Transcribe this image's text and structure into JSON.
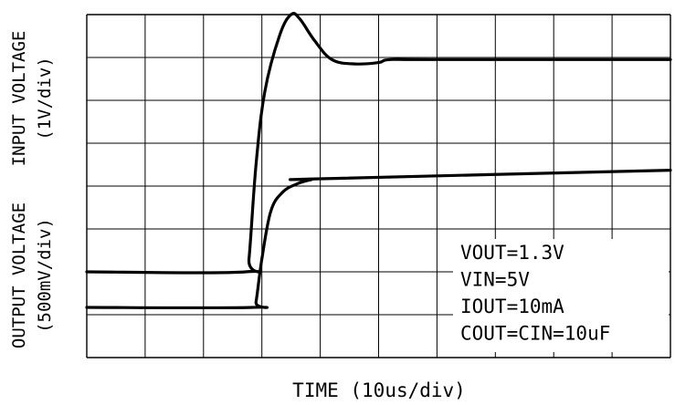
{
  "chart_data": {
    "type": "line",
    "xlabel": "TIME (10us/div)",
    "ylabel_top": "INPUT VOLTAGE",
    "ylabel_top_scale": "(1V/div)",
    "ylabel_bottom": "OUTPUT VOLTAGE",
    "ylabel_bottom_scale": "(500mV/div)",
    "grid": true,
    "x_divisions": 10,
    "y_divisions": 8,
    "x_range_div": [
      0,
      10
    ],
    "y_range_div": [
      0,
      8
    ],
    "annotations": [
      "VOUT=1.3V",
      "VIN=5V",
      "IOUT=10mA",
      "COUT=CIN=10uF"
    ],
    "annotation_position": "bottom-right",
    "series": [
      {
        "x_div": [
          0,
          2.72,
          2.78,
          2.9,
          3.05,
          3.3,
          3.5,
          3.65,
          3.9,
          4.2,
          4.6,
          5.0,
          5.2,
          6.0,
          10.0
        ],
        "y_div": [
          2.0,
          2.0,
          2.3,
          4.5,
          6.2,
          7.5,
          8.0,
          7.9,
          7.4,
          6.95,
          6.85,
          6.88,
          6.95,
          6.95,
          6.95
        ]
      },
      {
        "x_div": [
          0,
          2.85,
          2.9,
          3.0,
          3.15,
          3.35,
          3.6,
          3.85,
          4.0,
          10.0
        ],
        "y_div": [
          1.17,
          1.17,
          1.3,
          2.3,
          3.4,
          3.85,
          4.05,
          4.15,
          4.17,
          4.37
        ]
      }
    ]
  }
}
